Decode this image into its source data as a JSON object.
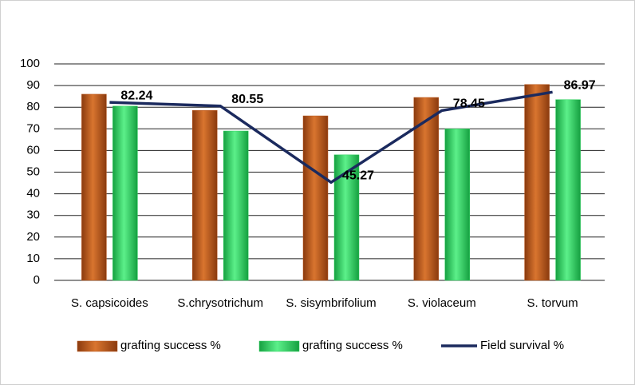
{
  "chart_data": {
    "type": "bar",
    "categories": [
      "S. capsicoides",
      "S.chrysotrichum",
      "S. sisymbrifolium",
      "S. violaceum",
      "S. torvum"
    ],
    "series": [
      {
        "name": "grafting success %",
        "color": "#b8561c",
        "values": [
          86,
          78.5,
          76,
          84.5,
          90.5
        ]
      },
      {
        "name": "grafting success %",
        "color": "#2fcf5e",
        "values": [
          80.5,
          69,
          58,
          70,
          83.5
        ]
      },
      {
        "name": "Field survival %",
        "type": "line",
        "color": "#1b2a5e",
        "values": [
          82.24,
          80.55,
          45.27,
          78.45,
          86.97
        ],
        "data_labels": true
      }
    ],
    "ylim": [
      0,
      100
    ],
    "yticks": [
      0,
      10,
      20,
      30,
      40,
      50,
      60,
      70,
      80,
      90,
      100
    ],
    "grid": true,
    "legend": "bottom"
  }
}
